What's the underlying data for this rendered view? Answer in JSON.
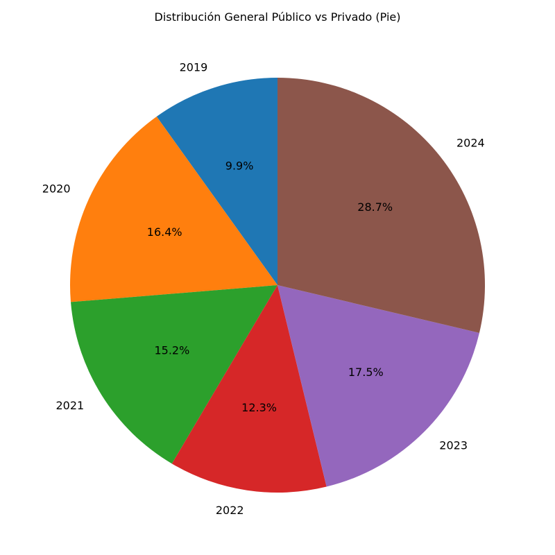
{
  "chart_data": {
    "type": "pie",
    "title": "Distribución General Público vs Privado (Pie)",
    "categories": [
      "2019",
      "2020",
      "2021",
      "2022",
      "2023",
      "2024"
    ],
    "values": [
      9.9,
      16.4,
      15.2,
      12.3,
      17.5,
      28.7
    ],
    "value_labels": [
      "9.9%",
      "16.4%",
      "15.2%",
      "12.3%",
      "17.5%",
      "28.7%"
    ],
    "colors": [
      "#1f77b4",
      "#ff7f0e",
      "#2ca02c",
      "#d62728",
      "#9467bd",
      "#8c564b"
    ],
    "start_angle": 90,
    "direction": "counterclockwise",
    "legend": "none"
  }
}
